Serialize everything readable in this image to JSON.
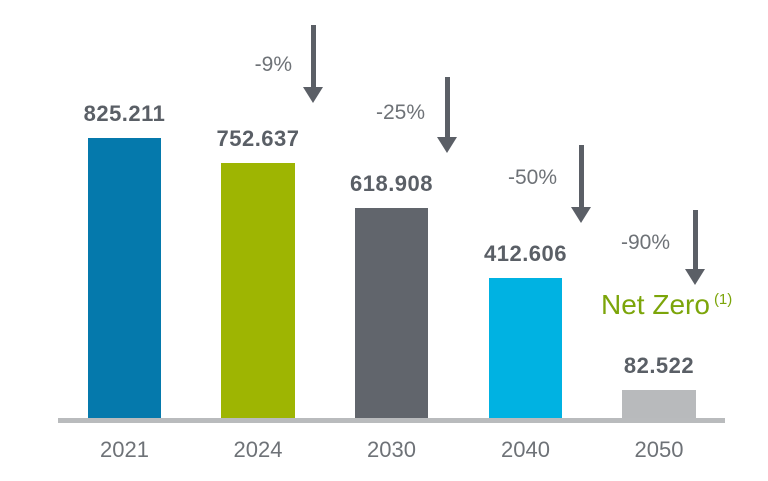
{
  "chart_data": {
    "type": "bar",
    "title": "",
    "xlabel": "",
    "ylabel": "",
    "categories": [
      "2021",
      "2024",
      "2030",
      "2040",
      "2050"
    ],
    "values": [
      825.211,
      752.637,
      618.908,
      412.606,
      82.522
    ],
    "value_labels": [
      "825.211",
      "752.637",
      "618.908",
      "412.606",
      "82.522"
    ],
    "bar_colors": [
      "#0579ac",
      "#9eb502",
      "#61656c",
      "#00b2e2",
      "#b8babc"
    ],
    "reduction_annotations": [
      {
        "label": "-9%",
        "applies_to": "2024"
      },
      {
        "label": "-25%",
        "applies_to": "2030"
      },
      {
        "label": "-50%",
        "applies_to": "2040"
      },
      {
        "label": "-90%",
        "applies_to": "2050"
      }
    ],
    "net_zero": {
      "label": "Net Zero",
      "superscript": "(1)"
    },
    "ylim": [
      0,
      825.211
    ],
    "grid": false,
    "legend": false
  },
  "colors": {
    "value_label_text": "#5a5f66",
    "secondary_text": "#6e7277",
    "arrow": "#5b5f66",
    "axis_line": "#b9bbbd",
    "net_zero_text": "#7ca50a"
  },
  "icons": {
    "reduction_arrow": "arrow-down-icon"
  }
}
